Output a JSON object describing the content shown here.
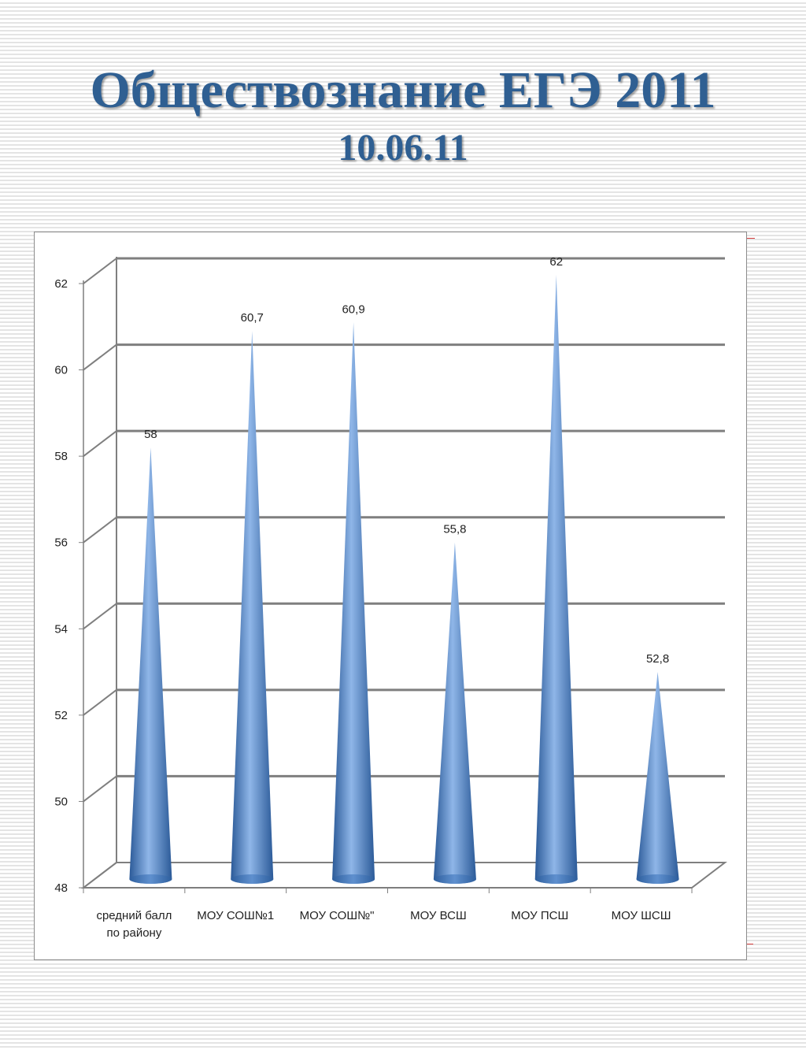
{
  "title": "Обществознание ЕГЭ 2011",
  "subtitle": "10.06.11",
  "chart_data": {
    "type": "bar",
    "bar_shape": "cone",
    "categories": [
      "средний балл по району",
      "МОУ СОШ№1",
      "МОУ СОШ№\"",
      "МОУ ВСШ",
      "МОУ ПСШ",
      "МОУ ШСШ"
    ],
    "category_lines": [
      [
        "средний балл",
        "по району"
      ],
      [
        "МОУ СОШ№1"
      ],
      [
        "МОУ СОШ№\""
      ],
      [
        "МОУ ВСШ"
      ],
      [
        "МОУ ПСШ"
      ],
      [
        "МОУ ШСШ"
      ]
    ],
    "values": [
      58,
      60.7,
      60.9,
      55.8,
      62,
      52.8
    ],
    "data_labels": [
      "58",
      "60,7",
      "60,9",
      "55,8",
      "62",
      "52,8"
    ],
    "ylim": [
      48,
      62
    ],
    "yticks": [
      48,
      50,
      52,
      54,
      56,
      58,
      60,
      62
    ],
    "grid": true,
    "colors": {
      "bar": "#4a7cc0",
      "bar_light": "#8fb6e8",
      "bar_dark": "#2b5a98",
      "grid": "#7f7f7f"
    }
  }
}
